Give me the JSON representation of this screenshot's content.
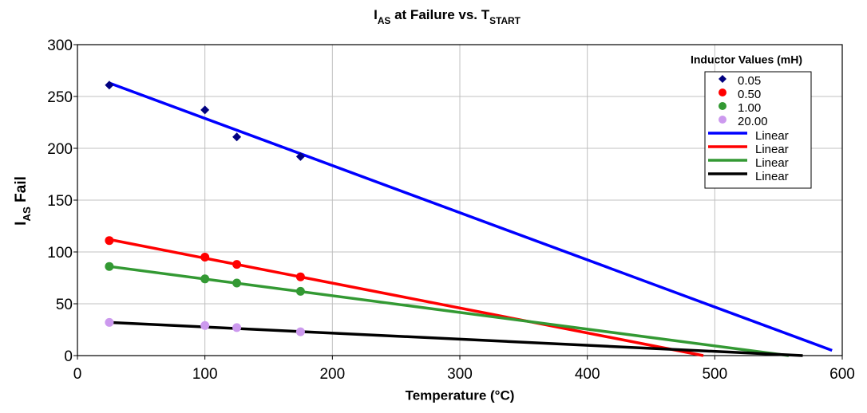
{
  "chart_data": {
    "type": "scatter",
    "title_parts": [
      {
        "text": "I"
      },
      {
        "text": "AS",
        "sub": true
      },
      {
        "text": " at Failure vs. T"
      },
      {
        "text": "START",
        "sub": true
      }
    ],
    "y_label_parts": [
      {
        "text": "I"
      },
      {
        "text": "AS",
        "sub": true
      },
      {
        "text": " Fail"
      }
    ],
    "x_label": "Temperature (°C)",
    "legend_title": "Inductor Values (mH)",
    "legend": "top-right",
    "grid": true,
    "xlim": [
      0,
      600
    ],
    "xticks": [
      0,
      100,
      200,
      300,
      400,
      500,
      600
    ],
    "ylim": [
      0,
      300
    ],
    "yticks": [
      0,
      50,
      100,
      150,
      200,
      250,
      300
    ],
    "series": [
      {
        "name": "0.05",
        "color": "#000080",
        "marker": "diamond",
        "x": [
          25,
          100,
          125,
          175
        ],
        "values": [
          261,
          237,
          211,
          192
        ]
      },
      {
        "name": "0.50",
        "color": "#ff0000",
        "marker": "circle",
        "x": [
          25,
          100,
          125,
          175
        ],
        "values": [
          111,
          95,
          88,
          76
        ]
      },
      {
        "name": "1.00",
        "color": "#339933",
        "marker": "circle",
        "x": [
          25,
          100,
          125,
          175
        ],
        "values": [
          86,
          74,
          70,
          62
        ]
      },
      {
        "name": "20.00",
        "color": "#cc99ee",
        "marker": "circle",
        "x": [
          25,
          100,
          125,
          175
        ],
        "values": [
          32,
          29,
          27,
          23
        ]
      }
    ],
    "trendlines": [
      {
        "name": "Linear",
        "color": "#0000ff",
        "x": [
          25,
          592
        ],
        "values": [
          263,
          5
        ]
      },
      {
        "name": "Linear",
        "color": "#ff0000",
        "x": [
          25,
          491
        ],
        "values": [
          112,
          0
        ]
      },
      {
        "name": "Linear",
        "color": "#339933",
        "x": [
          25,
          558
        ],
        "values": [
          86,
          0
        ]
      },
      {
        "name": "Linear",
        "color": "#000000",
        "x": [
          25,
          569
        ],
        "values": [
          32,
          0
        ]
      }
    ]
  }
}
